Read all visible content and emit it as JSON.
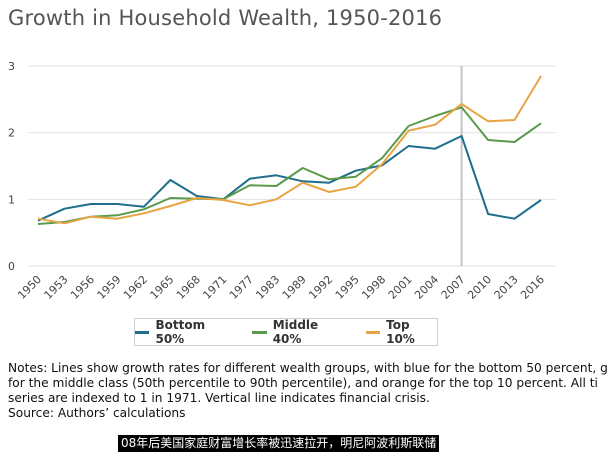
{
  "title": "Growth in Household Wealth, 1950-2016",
  "chart_data": {
    "type": "line",
    "title": "Growth in Household Wealth, 1950-2016",
    "categories": [
      "1950",
      "1953",
      "1956",
      "1959",
      "1962",
      "1965",
      "1968",
      "1971",
      "1977",
      "1983",
      "1989",
      "1992",
      "1995",
      "1998",
      "2001",
      "2004",
      "2007",
      "2010",
      "2013",
      "2016"
    ],
    "ylim": [
      0,
      3
    ],
    "yticks": [
      0,
      1,
      2,
      3
    ],
    "grid": "horizontal",
    "legend_position": "bottom",
    "vertical_line_at": "2007",
    "series": [
      {
        "name": "Bottom 50%",
        "color": "#1f6e8c",
        "values": [
          0.68,
          0.86,
          0.93,
          0.93,
          0.89,
          1.29,
          1.05,
          1.0,
          1.31,
          1.36,
          1.27,
          1.25,
          1.43,
          1.51,
          1.8,
          1.76,
          1.95,
          0.78,
          0.71,
          0.99
        ]
      },
      {
        "name": "Middle 40%",
        "color": "#5b9a4b",
        "values": [
          0.63,
          0.66,
          0.74,
          0.76,
          0.85,
          1.02,
          1.01,
          1.0,
          1.21,
          1.2,
          1.47,
          1.3,
          1.34,
          1.62,
          2.1,
          2.25,
          2.38,
          1.89,
          1.86,
          2.14
        ]
      },
      {
        "name": "Top 10%",
        "color": "#e8a443",
        "values": [
          0.71,
          0.64,
          0.74,
          0.71,
          0.79,
          0.9,
          1.02,
          0.99,
          0.91,
          1.0,
          1.25,
          1.11,
          1.19,
          1.53,
          2.03,
          2.12,
          2.43,
          2.17,
          2.19,
          2.85
        ]
      }
    ]
  },
  "notes": [
    "Notes: Lines show growth rates for different wealth groups, with blue for the bottom 50 percent, g",
    "for the middle class (50th percentile to 90th percentile), and orange for the top 10 percent. All ti",
    "series are indexed to 1 in 1971. Vertical line indicates financial crisis.",
    "Source: Authors’ calculations"
  ],
  "caption": "08年后美国家庭财富增长率被迅速拉开，明尼阿波利斯联储"
}
